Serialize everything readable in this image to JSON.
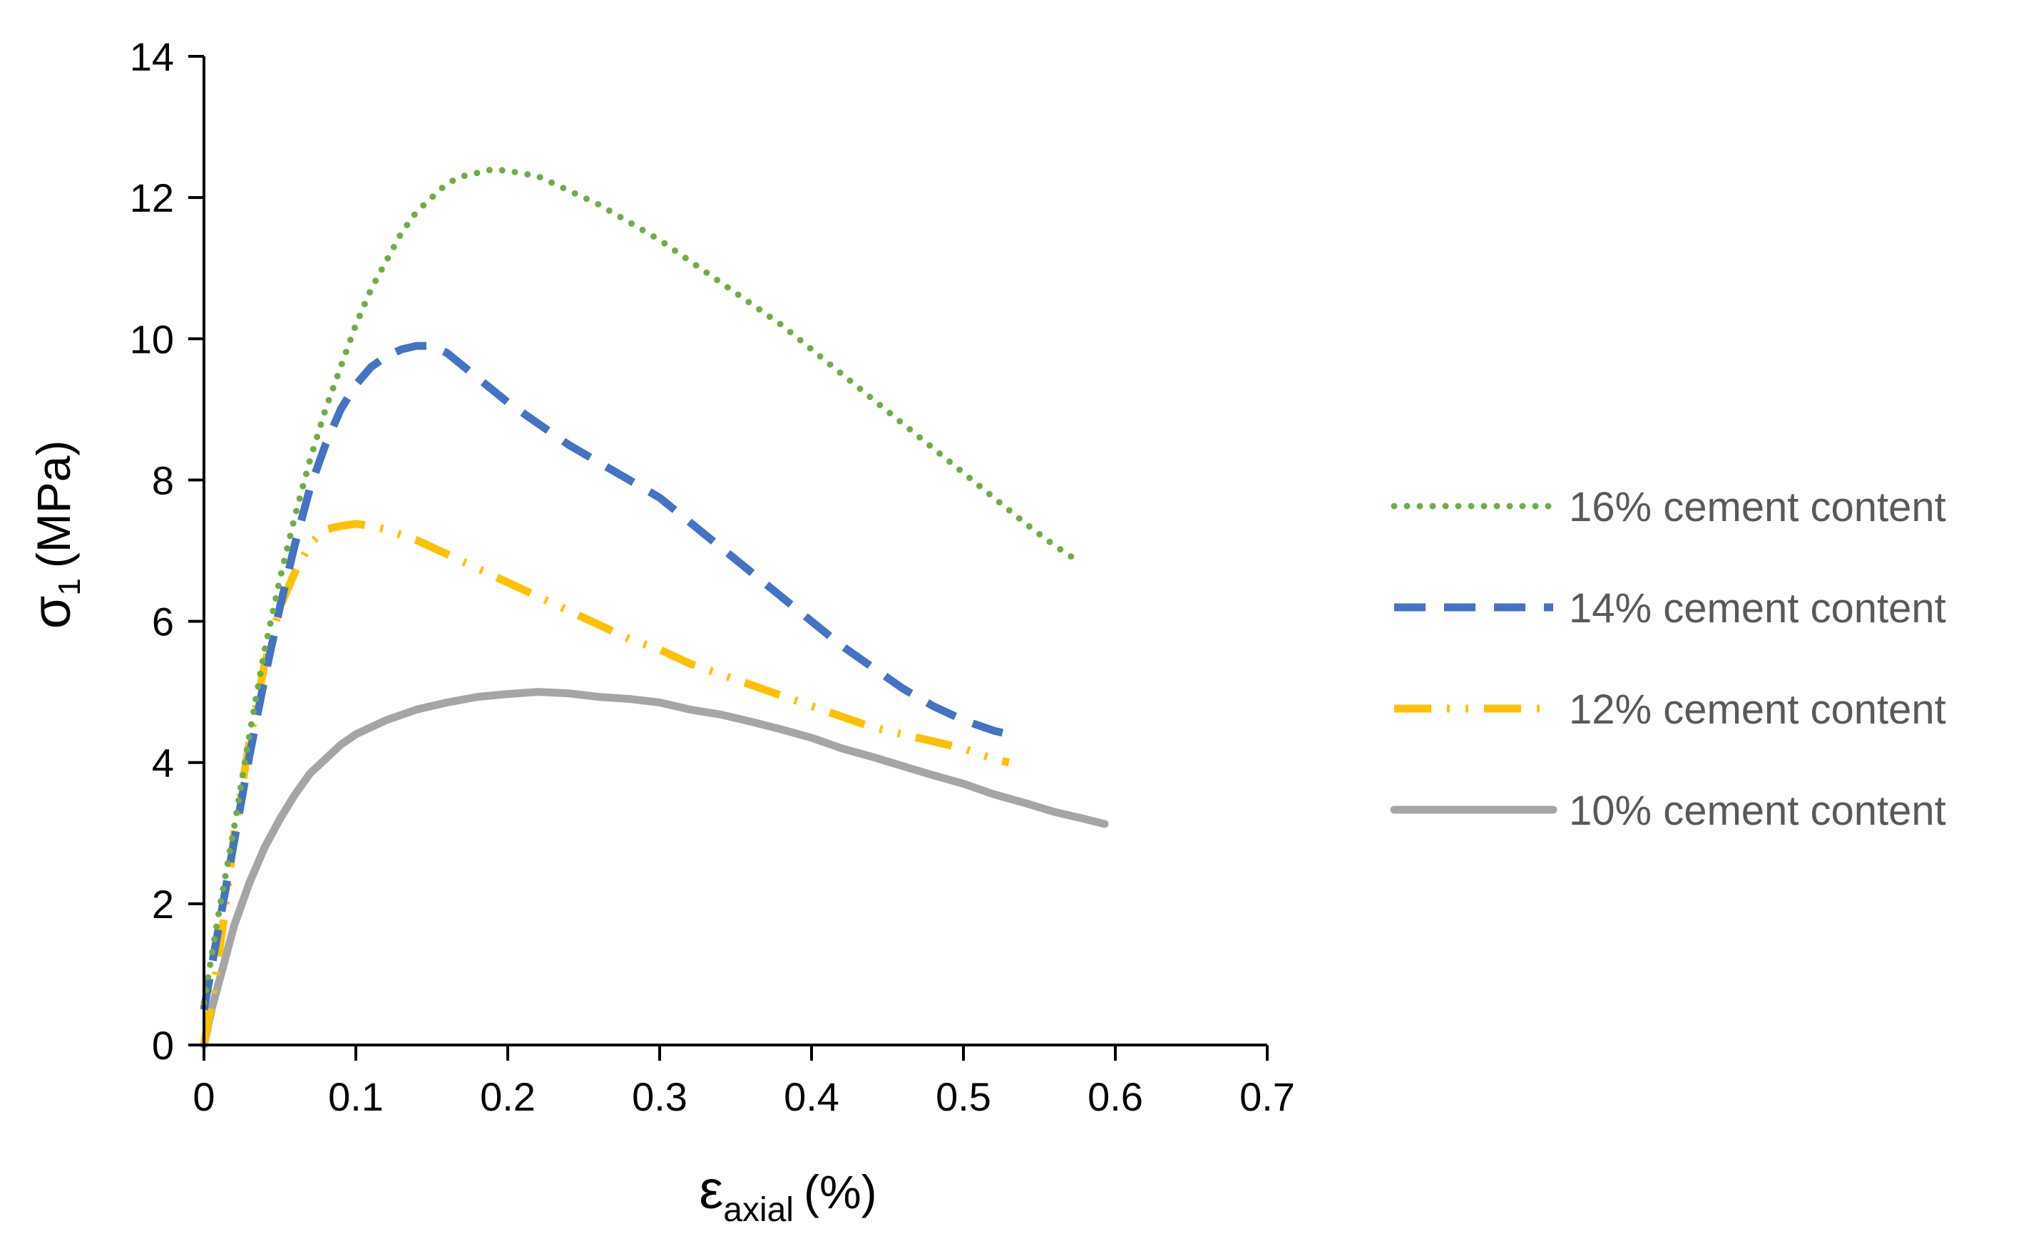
{
  "chart_data": {
    "type": "line",
    "title": "",
    "xlabel": {
      "symbol": "ε",
      "subscript": "axial",
      "suffix": "(%)"
    },
    "ylabel": {
      "symbol": "σ",
      "subscript": "1",
      "suffix": "(MPa)"
    },
    "xlim": [
      0,
      0.7
    ],
    "ylim": [
      0,
      14
    ],
    "xticks": [
      0,
      0.1,
      0.2,
      0.3,
      0.4,
      0.5,
      0.6,
      0.7
    ],
    "xtick_labels": [
      "0",
      "0.1",
      "0.2",
      "0.3",
      "0.4",
      "0.5",
      "0.6",
      "0.7"
    ],
    "yticks": [
      0,
      2,
      4,
      6,
      8,
      10,
      12,
      14
    ],
    "ytick_labels": [
      "0",
      "2",
      "4",
      "6",
      "8",
      "10",
      "12",
      "14"
    ],
    "grid": false,
    "legend_position": "right",
    "series": [
      {
        "name": "16% cement content",
        "color": "#70AD47",
        "style": "dotted",
        "x": [
          0,
          0.01,
          0.02,
          0.03,
          0.04,
          0.05,
          0.06,
          0.07,
          0.08,
          0.09,
          0.1,
          0.11,
          0.12,
          0.13,
          0.14,
          0.15,
          0.16,
          0.17,
          0.18,
          0.19,
          0.2,
          0.22,
          0.24,
          0.26,
          0.28,
          0.3,
          0.32,
          0.34,
          0.36,
          0.38,
          0.4,
          0.42,
          0.44,
          0.46,
          0.48,
          0.5,
          0.52,
          0.54,
          0.555,
          0.565,
          0.572
        ],
        "y": [
          0.6,
          1.9,
          3.1,
          4.4,
          5.6,
          6.6,
          7.5,
          8.3,
          9.0,
          9.6,
          10.2,
          10.7,
          11.1,
          11.5,
          11.8,
          12.0,
          12.2,
          12.3,
          12.35,
          12.4,
          12.38,
          12.3,
          12.1,
          11.9,
          11.65,
          11.4,
          11.1,
          10.8,
          10.5,
          10.2,
          9.85,
          9.5,
          9.15,
          8.8,
          8.45,
          8.1,
          7.75,
          7.4,
          7.15,
          7.0,
          6.9
        ]
      },
      {
        "name": "14% cement content",
        "color": "#4472C4",
        "style": "dashed",
        "x": [
          0,
          0.01,
          0.02,
          0.03,
          0.04,
          0.05,
          0.06,
          0.07,
          0.08,
          0.09,
          0.1,
          0.11,
          0.12,
          0.13,
          0.14,
          0.15,
          0.16,
          0.18,
          0.2,
          0.22,
          0.24,
          0.26,
          0.28,
          0.3,
          0.32,
          0.34,
          0.36,
          0.38,
          0.4,
          0.42,
          0.44,
          0.46,
          0.48,
          0.5,
          0.52,
          0.53
        ],
        "y": [
          0.5,
          1.7,
          2.9,
          4.1,
          5.2,
          6.2,
          7.1,
          7.9,
          8.5,
          9.0,
          9.35,
          9.6,
          9.75,
          9.85,
          9.9,
          9.9,
          9.8,
          9.45,
          9.1,
          8.8,
          8.5,
          8.25,
          8.0,
          7.75,
          7.4,
          7.05,
          6.7,
          6.35,
          6.0,
          5.65,
          5.35,
          5.05,
          4.8,
          4.6,
          4.45,
          4.4
        ]
      },
      {
        "name": "12% cement content",
        "color": "#FFC000",
        "style": "dash-dot-dot",
        "x": [
          0,
          0.005,
          0.01,
          0.015,
          0.02,
          0.03,
          0.04,
          0.05,
          0.06,
          0.07,
          0.08,
          0.09,
          0.1,
          0.11,
          0.12,
          0.14,
          0.16,
          0.18,
          0.2,
          0.22,
          0.24,
          0.26,
          0.28,
          0.3,
          0.32,
          0.34,
          0.36,
          0.38,
          0.4,
          0.42,
          0.44,
          0.46,
          0.48,
          0.5,
          0.52,
          0.53
        ],
        "y": [
          0,
          0.6,
          1.3,
          2.1,
          3.0,
          4.3,
          5.4,
          6.2,
          6.7,
          7.1,
          7.3,
          7.35,
          7.38,
          7.35,
          7.3,
          7.15,
          6.95,
          6.75,
          6.55,
          6.35,
          6.15,
          5.95,
          5.75,
          5.6,
          5.4,
          5.25,
          5.1,
          4.95,
          4.8,
          4.65,
          4.5,
          4.4,
          4.3,
          4.2,
          4.05,
          4.0
        ]
      },
      {
        "name": "10% cement content",
        "color": "#A5A5A5",
        "style": "solid",
        "x": [
          0,
          0.005,
          0.01,
          0.02,
          0.03,
          0.04,
          0.05,
          0.06,
          0.07,
          0.08,
          0.09,
          0.1,
          0.12,
          0.14,
          0.16,
          0.18,
          0.2,
          0.22,
          0.24,
          0.26,
          0.28,
          0.3,
          0.32,
          0.34,
          0.36,
          0.38,
          0.4,
          0.42,
          0.44,
          0.46,
          0.48,
          0.5,
          0.52,
          0.54,
          0.56,
          0.58,
          0.593
        ],
        "y": [
          0,
          0.5,
          0.9,
          1.7,
          2.3,
          2.8,
          3.2,
          3.55,
          3.85,
          4.05,
          4.25,
          4.4,
          4.6,
          4.75,
          4.85,
          4.93,
          4.97,
          5.0,
          4.98,
          4.93,
          4.9,
          4.85,
          4.75,
          4.68,
          4.58,
          4.47,
          4.35,
          4.2,
          4.08,
          3.95,
          3.82,
          3.7,
          3.55,
          3.43,
          3.3,
          3.2,
          3.13
        ]
      }
    ]
  }
}
